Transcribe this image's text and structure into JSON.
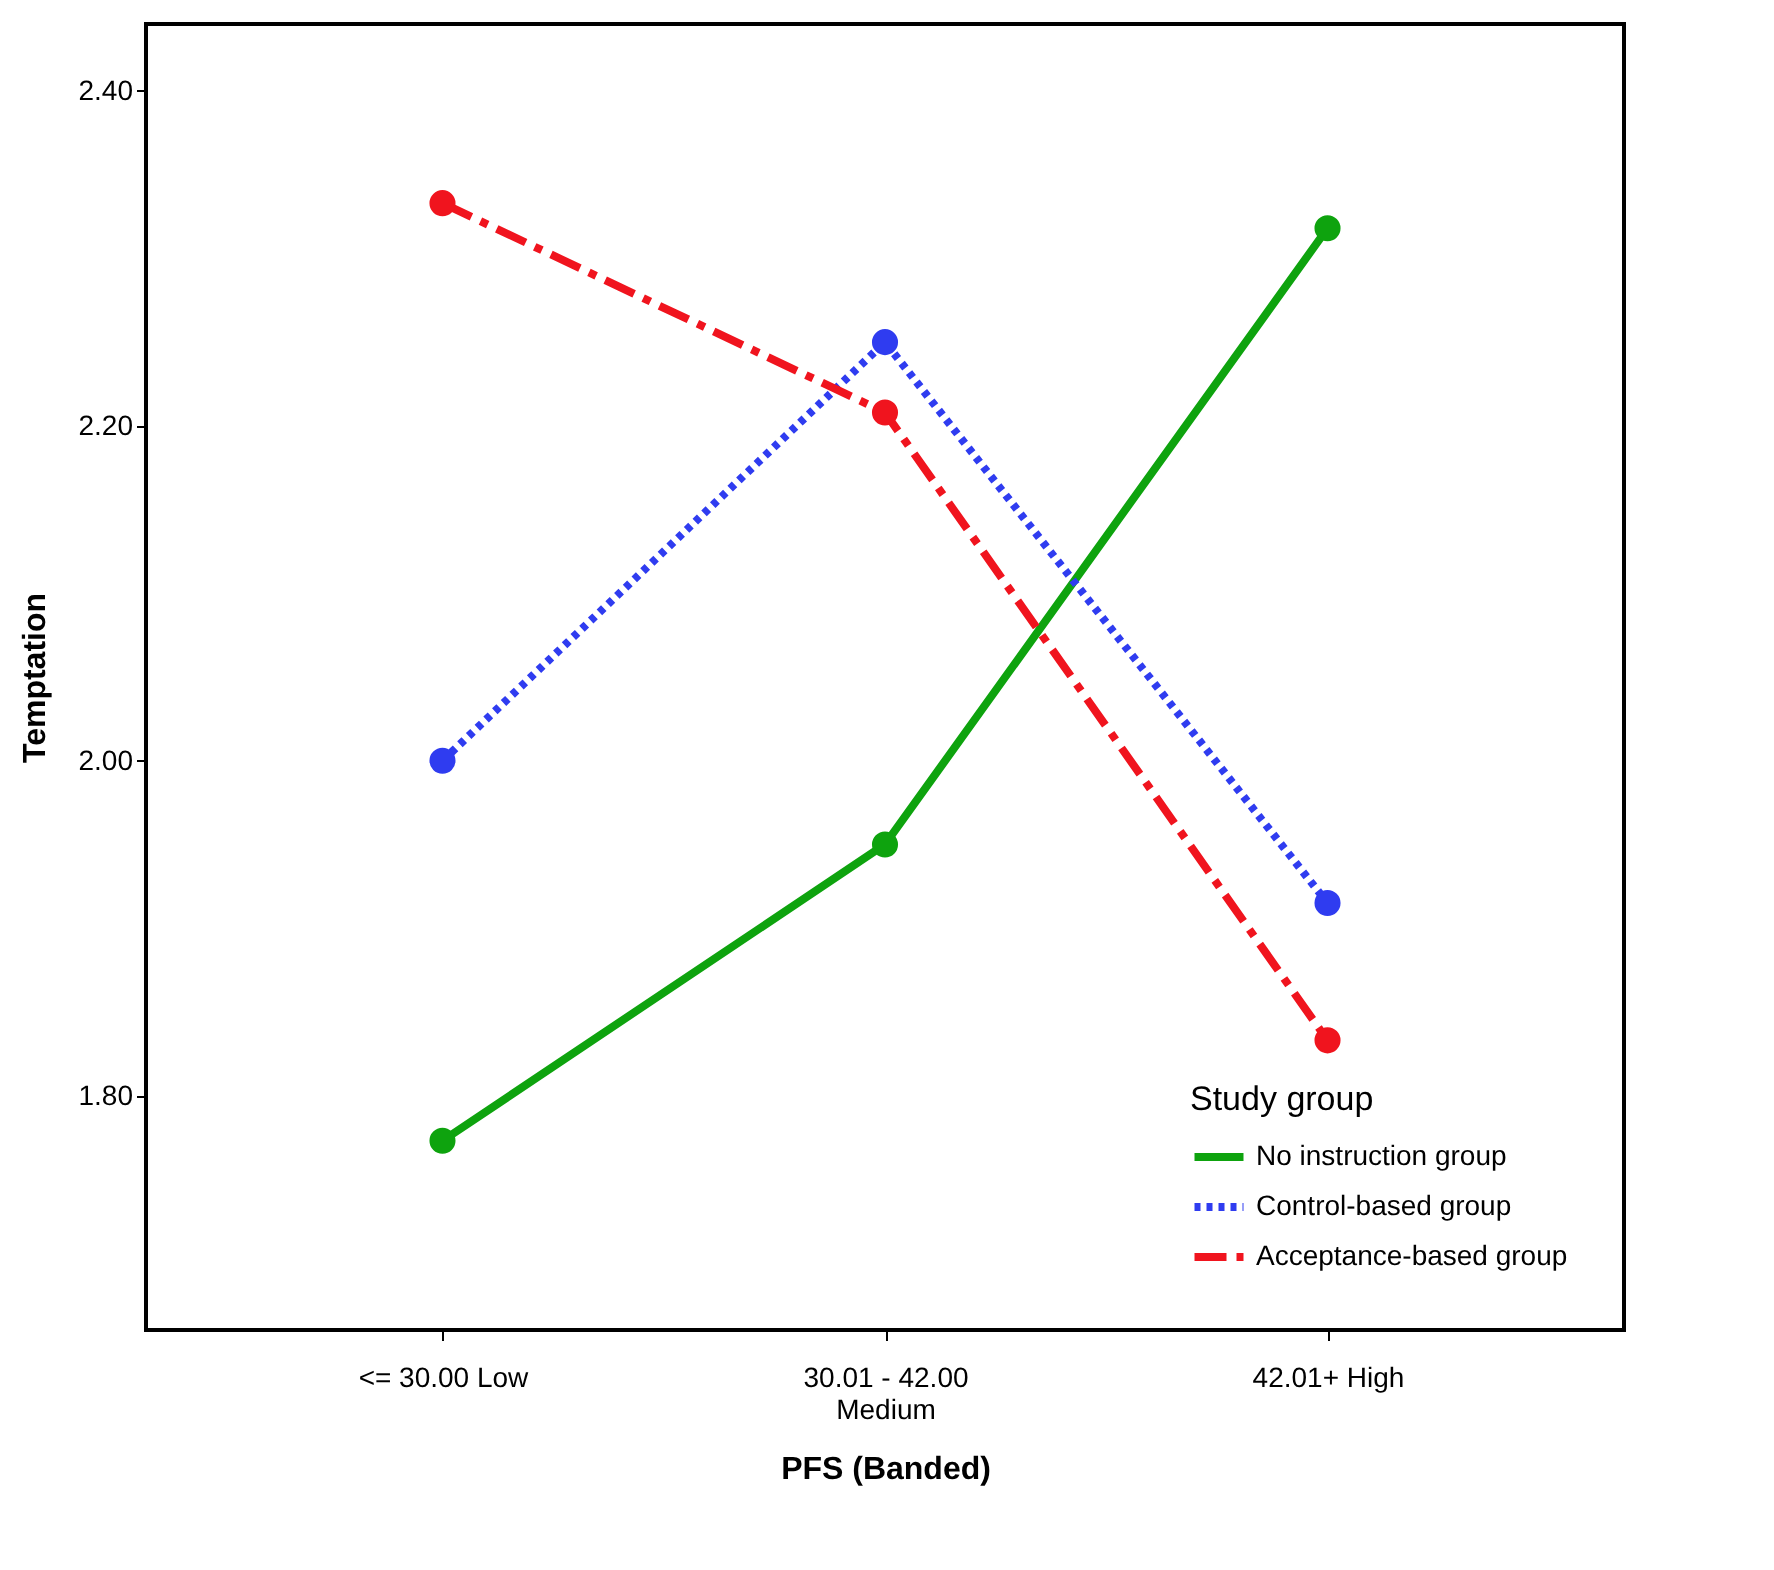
{
  "chart_data": {
    "type": "line",
    "xlabel": "PFS (Banded)",
    "ylabel": "Temptation",
    "legend_title": "Study group",
    "categories": [
      "<= 30.00  Low",
      "30.01 - 42.00\nMedium",
      "42.01+  High"
    ],
    "series": [
      {
        "name": "No instruction group",
        "color": "#0ea30e",
        "line_style": "solid",
        "values": [
          1.773,
          1.95,
          2.318
        ]
      },
      {
        "name": "Control-based group",
        "color": "#2f3cf0",
        "line_style": "dotted",
        "values": [
          2.0,
          2.25,
          1.915
        ]
      },
      {
        "name": "Acceptance-based group",
        "color": "#f0141e",
        "line_style": "dashed",
        "values": [
          2.333,
          2.208,
          1.833
        ]
      }
    ],
    "ylim": [
      1.66,
      2.44
    ],
    "yticks": [
      {
        "value": 1.8,
        "label": "1.80"
      },
      {
        "value": 2.0,
        "label": "2.00"
      },
      {
        "value": 2.2,
        "label": "2.20"
      },
      {
        "value": 2.4,
        "label": "2.40"
      }
    ],
    "grid": false,
    "legend": "bottom right",
    "marker": "circle"
  }
}
